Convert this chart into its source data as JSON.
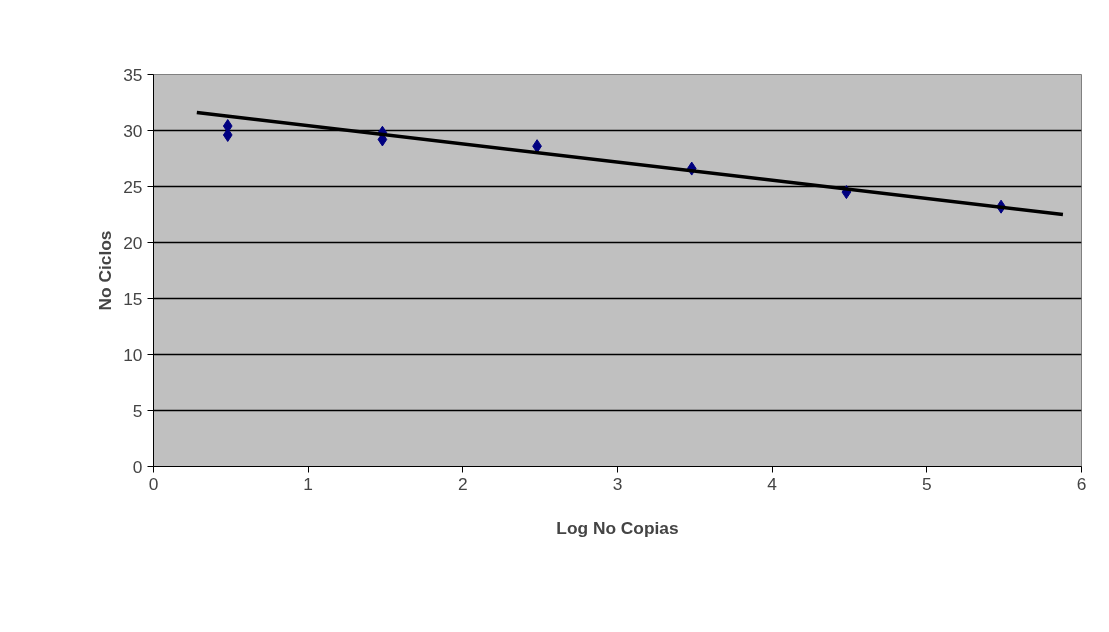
{
  "chart_data": {
    "type": "scatter",
    "xlabel": "Log No Copias",
    "ylabel": "No Ciclos",
    "xlim": [
      0,
      6
    ],
    "xticks": [
      0,
      1,
      2,
      3,
      4,
      5,
      6
    ],
    "ylim": [
      0,
      35
    ],
    "yticks": [
      0,
      5,
      10,
      15,
      20,
      25,
      30,
      35
    ],
    "grid": "y",
    "series": [
      {
        "marker": "diamond",
        "color": "#000080",
        "x": [
          0.48,
          0.48,
          1.48,
          1.48,
          2.48,
          3.48,
          4.48,
          5.48
        ],
        "values": [
          30.4,
          29.6,
          29.8,
          29.2,
          28.6,
          26.6,
          24.5,
          23.2
        ]
      },
      {
        "type": "line",
        "color": "#000000",
        "x": [
          0.28,
          5.88
        ],
        "values": [
          31.6,
          22.5
        ]
      }
    ]
  }
}
